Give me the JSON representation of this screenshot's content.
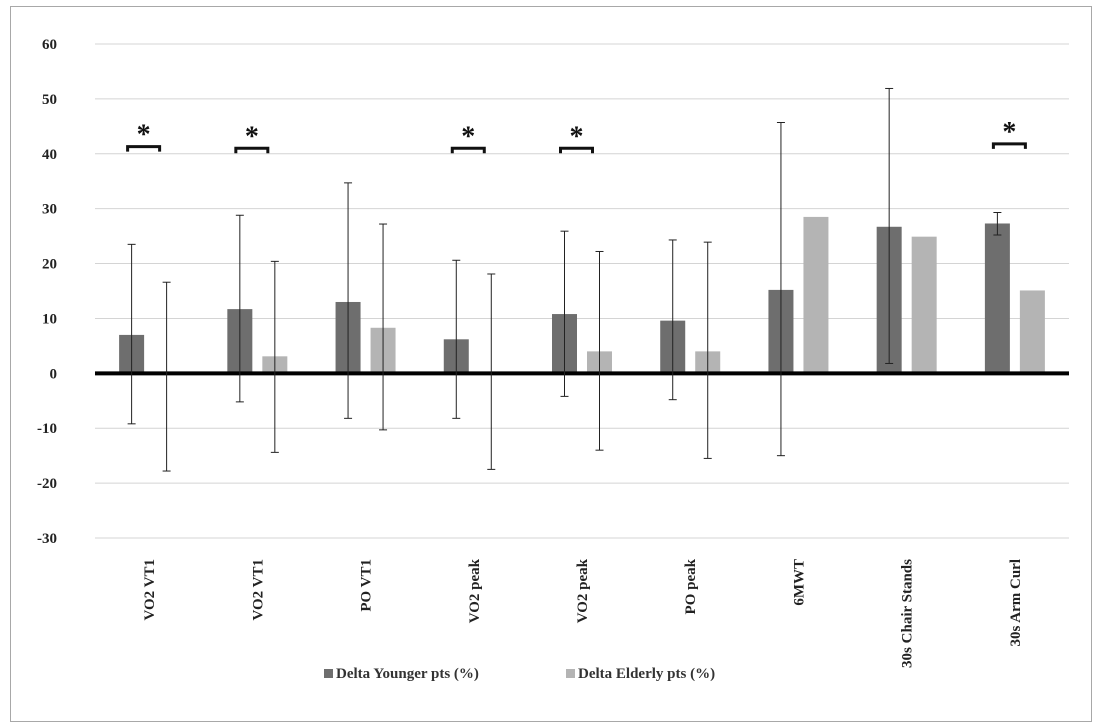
{
  "chart_data": {
    "type": "bar",
    "categories": [
      "VO2 VT1",
      "VO2 VT1",
      "PO VT1",
      "VO2 peak",
      "VO2 peak",
      "PO peak",
      "6MWT",
      "30s Chair Stands",
      "30s Arm Curl"
    ],
    "series": [
      {
        "name": "Delta Younger pts (%)",
        "color": "#6e6e6e",
        "values": [
          7,
          11.7,
          13,
          6.2,
          10.8,
          9.6,
          15.2,
          26.7,
          27.3
        ],
        "err_low": [
          -9.2,
          -5.2,
          -8.2,
          -8.2,
          -4.2,
          -4.8,
          -15,
          1.8,
          25.2
        ],
        "err_high": [
          23.5,
          28.8,
          34.7,
          20.6,
          25.9,
          24.3,
          45.7,
          51.9,
          29.3
        ]
      },
      {
        "name": "Delta Elderly pts (%)",
        "color": "#b4b4b4",
        "values": [
          0,
          3.1,
          8.3,
          0,
          4,
          4,
          28.5,
          24.9,
          15.1
        ],
        "err_low": [
          -17.8,
          -14.4,
          -10.3,
          -17.5,
          -14,
          -15.5,
          null,
          null,
          null
        ],
        "err_high": [
          16.6,
          20.4,
          27.2,
          18.1,
          22.2,
          23.9,
          null,
          null,
          null
        ]
      }
    ],
    "significance": [
      {
        "index": 0,
        "label": "*",
        "y": 41.3
      },
      {
        "index": 1,
        "label": "*",
        "y": 41
      },
      {
        "index": 3,
        "label": "*",
        "y": 41
      },
      {
        "index": 4,
        "label": "*",
        "y": 41
      },
      {
        "index": 8,
        "label": "*",
        "y": 41.8
      }
    ],
    "ylim": [
      -30,
      60
    ],
    "yticks": [
      60,
      50,
      40,
      30,
      20,
      10,
      0,
      -10,
      -20,
      -30
    ],
    "grid": true,
    "legend_position": "bottom-center"
  }
}
